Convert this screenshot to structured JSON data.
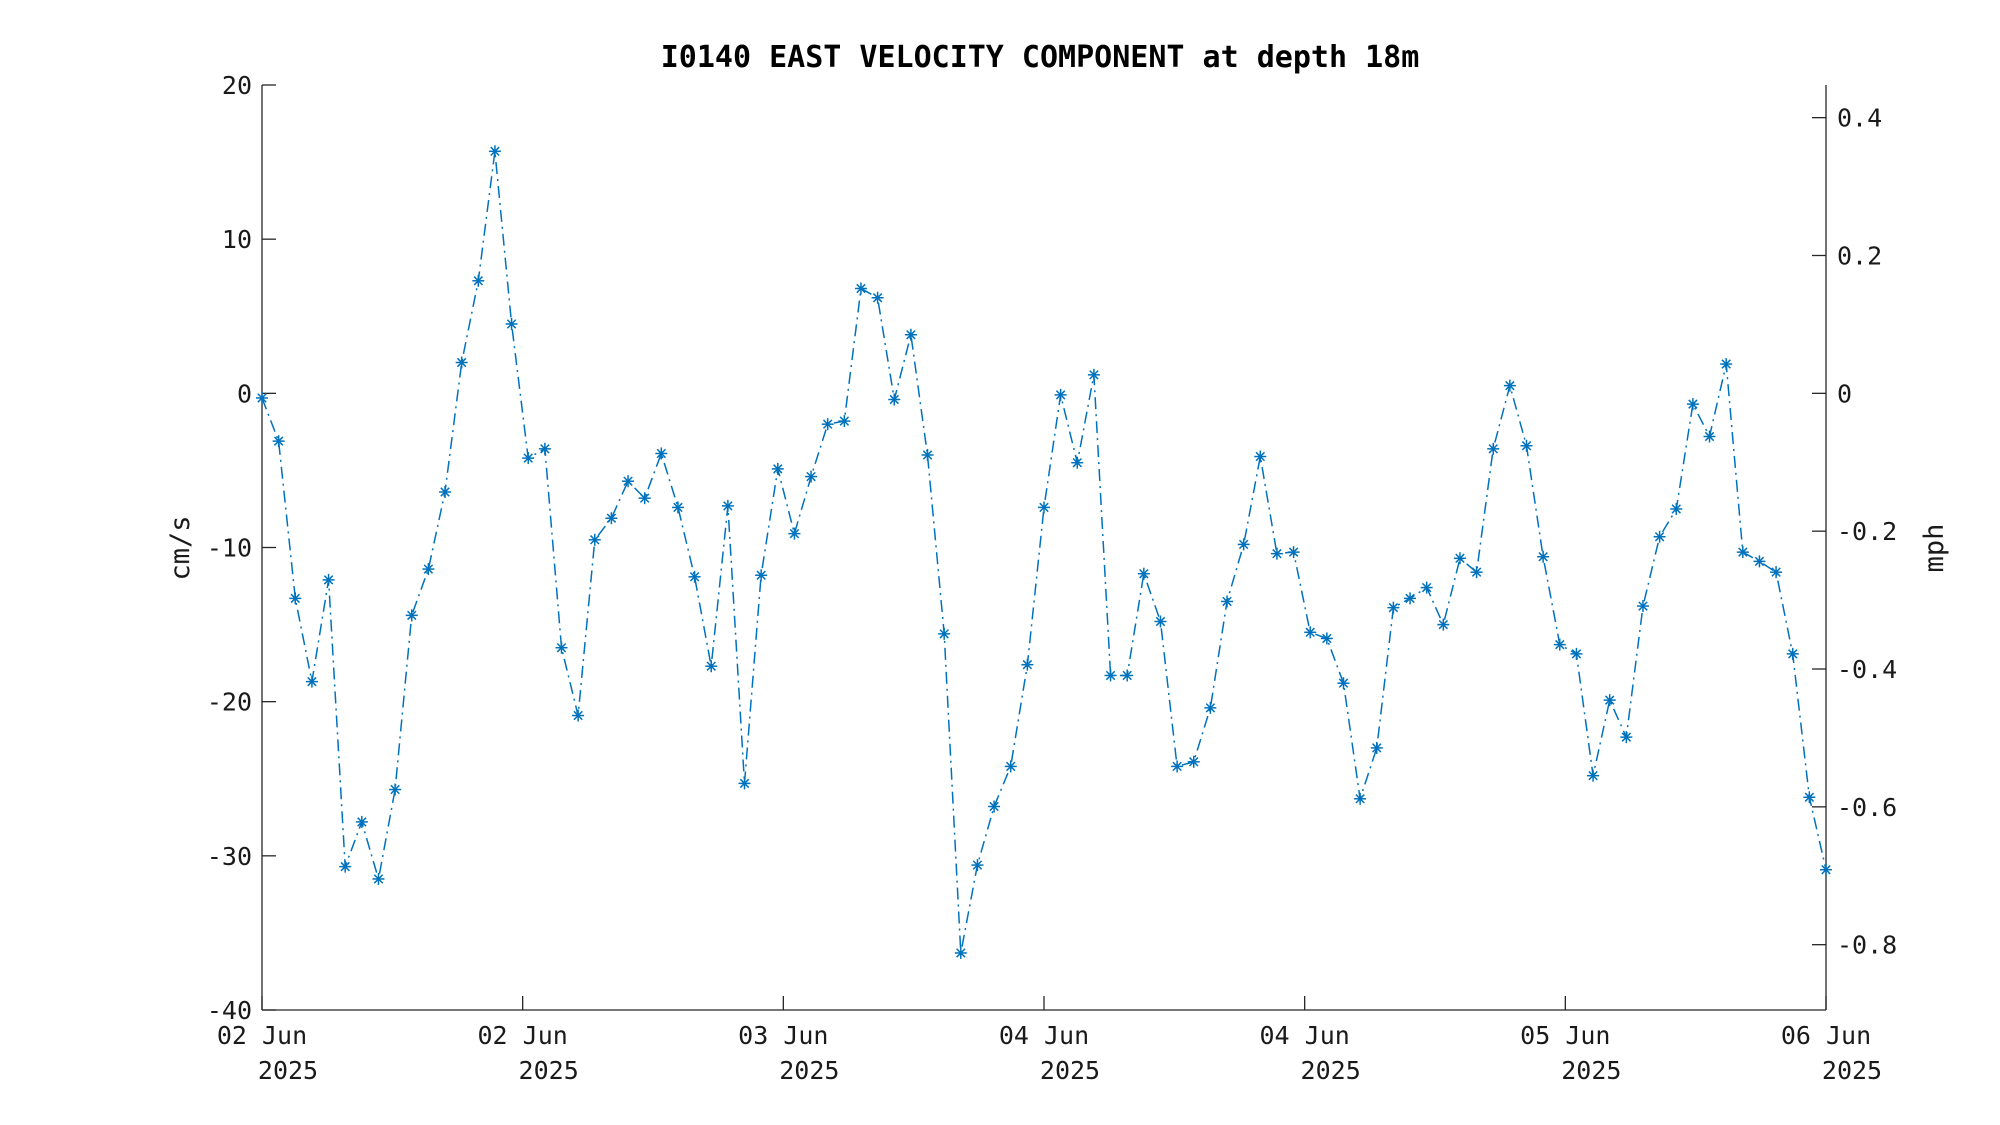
{
  "chart_data": {
    "type": "line",
    "title": "I0140 EAST VELOCITY COMPONENT at depth 18m",
    "ylabel": "cm/s",
    "ylabel_right": "mph",
    "ylim": [
      -40,
      20
    ],
    "yticks": [
      "20",
      "10",
      "0",
      "-10",
      "-20",
      "-30",
      "-40"
    ],
    "yticks_right": [
      "0.4",
      "0.2",
      "0",
      "-0.2",
      "-0.4",
      "-0.6",
      "-0.8"
    ],
    "xticks": [
      {
        "day": "02 Jun",
        "year": "2025"
      },
      {
        "day": "02 Jun",
        "year": "2025"
      },
      {
        "day": "03 Jun",
        "year": "2025"
      },
      {
        "day": "04 Jun",
        "year": "2025"
      },
      {
        "day": "04 Jun",
        "year": "2025"
      },
      {
        "day": "05 Jun",
        "year": "2025"
      },
      {
        "day": "06 Jun",
        "year": "2025"
      }
    ],
    "grid": false,
    "line_style": "dash-dot",
    "marker": "asterisk",
    "color": "#0072BD",
    "series": [
      {
        "values": [
          -0.3,
          -3.1,
          -13.3,
          -18.7,
          -12.1,
          -30.7,
          -27.8,
          -31.5,
          -25.7,
          -14.4,
          -11.4,
          -6.4,
          2.0,
          7.3,
          15.7,
          4.5,
          -4.2,
          -3.6,
          -16.5,
          -20.9,
          -9.5,
          -8.1,
          -5.7,
          -6.8,
          -3.9,
          -7.4,
          -11.9,
          -17.7,
          -7.3,
          -25.3,
          -11.8,
          -4.9,
          -9.1,
          -5.4,
          -2.0,
          -1.8,
          6.8,
          6.2,
          -0.4,
          3.8,
          -4.0,
          -15.6,
          -36.3,
          -30.6,
          -26.8,
          -24.2,
          -17.6,
          -7.4,
          -0.1,
          -4.5,
          1.2,
          -18.3,
          -18.3,
          -11.7,
          -14.8,
          -24.2,
          -23.9,
          -20.4,
          -13.5,
          -9.8,
          -4.1,
          -10.4,
          -10.3,
          -15.5,
          -15.9,
          -18.8,
          -26.3,
          -23.0,
          -13.9,
          -13.3,
          -12.6,
          -15.0,
          -10.7,
          -11.6,
          -3.6,
          0.5,
          -3.4,
          -10.6,
          -16.3,
          -16.9,
          -24.8,
          -19.9,
          -22.3,
          -13.8,
          -9.3,
          -7.5,
          -0.7,
          -2.8,
          1.9,
          -10.3,
          -10.9,
          -11.6,
          -16.9,
          -26.2,
          -30.9
        ]
      }
    ]
  }
}
